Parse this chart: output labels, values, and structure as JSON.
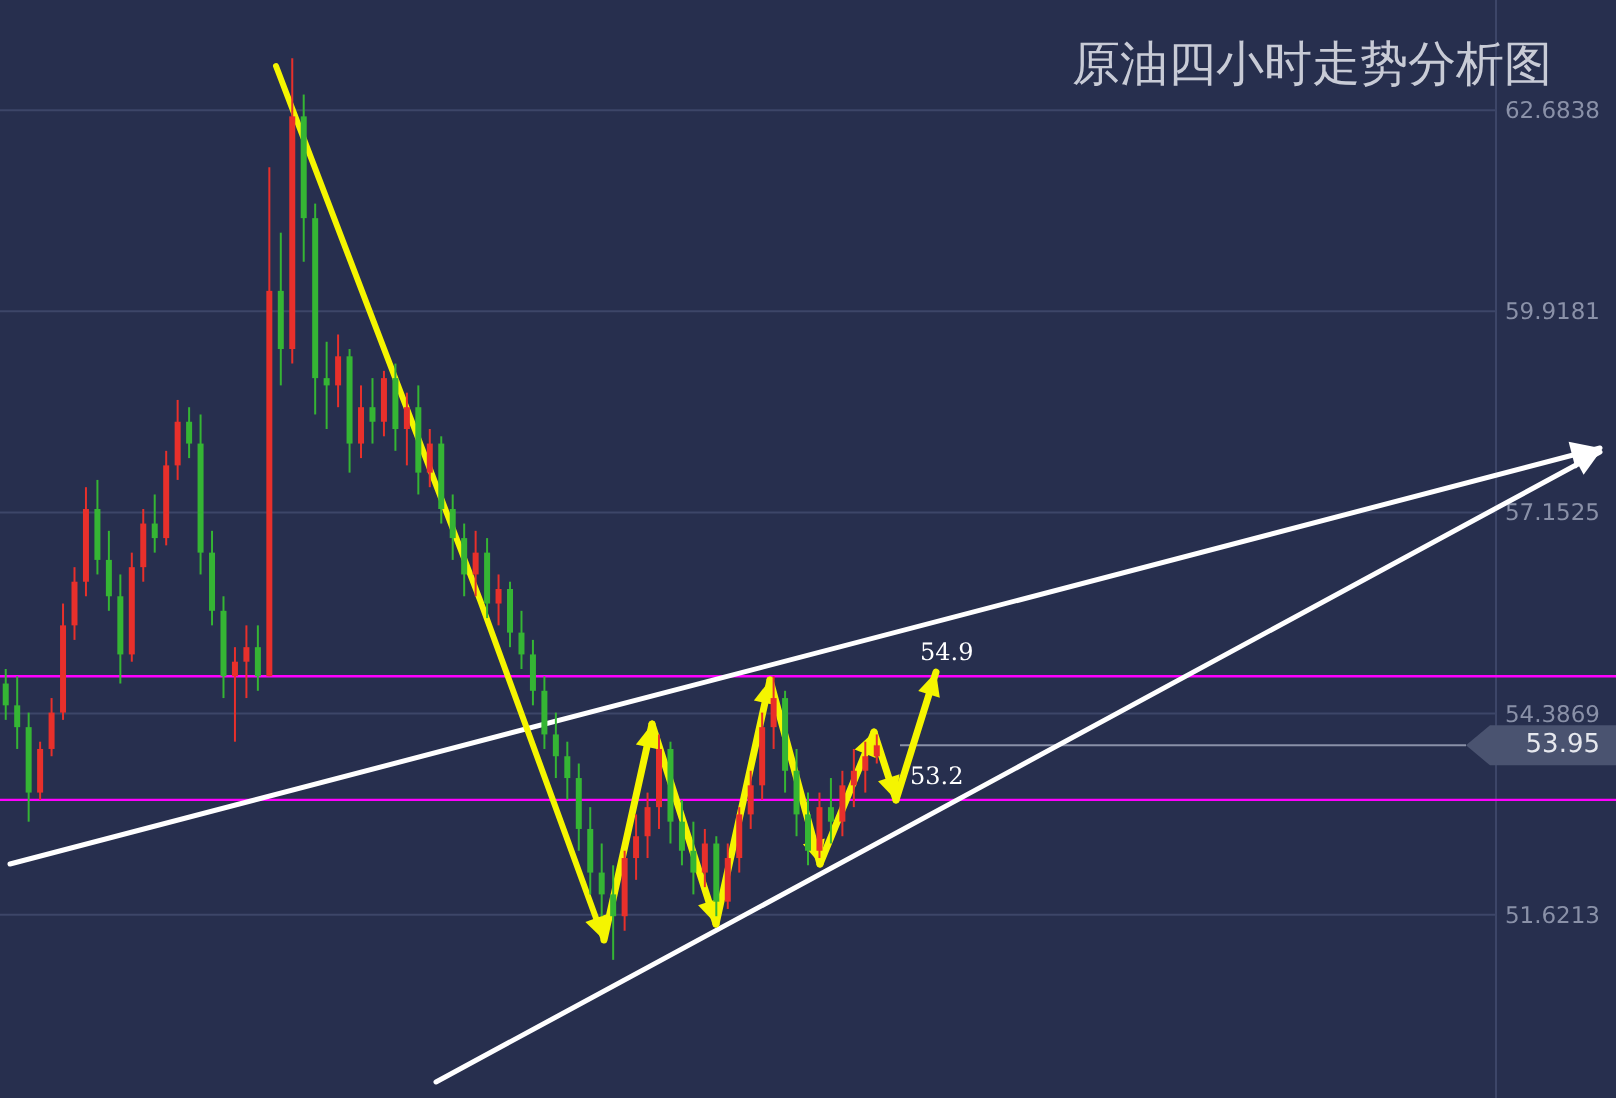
{
  "chart_data": {
    "type": "candlestick",
    "title": "原油四小时走势分析图",
    "categories": [
      null,
      null,
      null,
      null,
      null,
      null,
      null,
      null,
      null,
      null,
      null,
      null,
      null,
      null,
      null,
      null,
      null,
      null,
      null,
      null,
      null,
      null,
      null,
      null,
      null,
      null,
      null,
      null,
      null,
      null,
      null,
      null,
      null,
      null,
      null,
      null,
      null,
      null,
      null,
      null,
      null,
      null,
      null,
      null,
      null,
      null,
      null,
      null,
      null,
      null,
      null,
      null,
      null,
      null,
      null,
      null,
      null,
      null,
      null,
      null,
      null,
      null,
      null,
      null,
      null,
      null,
      null,
      null,
      null,
      null,
      null,
      null,
      null,
      null,
      null,
      null,
      null,
      null,
      null,
      null,
      null,
      null,
      null,
      null,
      null,
      null,
      null,
      null,
      null,
      null,
      null,
      null,
      null,
      null,
      null,
      null,
      null,
      null,
      null,
      null,
      null,
      null,
      null,
      null,
      null,
      null,
      null,
      null,
      null,
      null,
      null,
      null,
      null,
      null,
      null,
      null,
      null,
      null,
      null,
      null,
      null,
      null,
      null,
      null,
      null,
      null,
      null,
      null,
      null,
      null,
      null,
      null,
      null,
      null,
      null,
      null,
      null,
      null,
      null,
      null,
      null
    ],
    "ohlc": [
      [
        54.8,
        55.0,
        54.3,
        54.5
      ],
      [
        54.5,
        54.9,
        53.9,
        54.2
      ],
      [
        54.2,
        54.4,
        52.9,
        53.3
      ],
      [
        53.3,
        54.0,
        53.2,
        53.9
      ],
      [
        53.9,
        54.6,
        53.8,
        54.4
      ],
      [
        54.4,
        55.9,
        54.3,
        55.6
      ],
      [
        55.6,
        56.4,
        55.4,
        56.2
      ],
      [
        56.2,
        57.5,
        56.0,
        57.2
      ],
      [
        57.2,
        57.6,
        56.3,
        56.5
      ],
      [
        56.5,
        56.9,
        55.8,
        56.0
      ],
      [
        56.0,
        56.3,
        54.8,
        55.2
      ],
      [
        55.2,
        56.6,
        55.1,
        56.4
      ],
      [
        56.4,
        57.2,
        56.2,
        57.0
      ],
      [
        57.0,
        57.4,
        56.6,
        56.8
      ],
      [
        56.8,
        58.0,
        56.7,
        57.8
      ],
      [
        57.8,
        58.7,
        57.6,
        58.4
      ],
      [
        58.4,
        58.6,
        57.9,
        58.1
      ],
      [
        58.1,
        58.5,
        56.3,
        56.6
      ],
      [
        56.6,
        56.9,
        55.6,
        55.8
      ],
      [
        55.8,
        56.0,
        54.6,
        54.9
      ],
      [
        54.9,
        55.3,
        54.0,
        55.1
      ],
      [
        55.1,
        55.6,
        54.6,
        55.3
      ],
      [
        55.3,
        55.6,
        54.7,
        54.9
      ],
      [
        54.9,
        61.9,
        54.9,
        60.2
      ],
      [
        60.2,
        61.0,
        58.9,
        59.4
      ],
      [
        59.4,
        63.4,
        59.2,
        62.6
      ],
      [
        62.6,
        62.9,
        60.6,
        61.2
      ],
      [
        61.2,
        61.4,
        58.5,
        59.0
      ],
      [
        59.0,
        59.5,
        58.3,
        58.9
      ],
      [
        58.9,
        59.6,
        58.6,
        59.3
      ],
      [
        59.3,
        59.4,
        57.7,
        58.1
      ],
      [
        58.1,
        58.9,
        57.9,
        58.6
      ],
      [
        58.6,
        59.0,
        58.1,
        58.4
      ],
      [
        58.4,
        59.1,
        58.2,
        59.0
      ],
      [
        59.0,
        59.2,
        58.0,
        58.3
      ],
      [
        58.3,
        58.8,
        57.8,
        58.6
      ],
      [
        58.6,
        58.9,
        57.4,
        57.7
      ],
      [
        57.7,
        58.3,
        57.5,
        58.1
      ],
      [
        58.1,
        58.2,
        57.0,
        57.2
      ],
      [
        57.2,
        57.4,
        56.5,
        56.8
      ],
      [
        56.8,
        57.0,
        56.0,
        56.3
      ],
      [
        56.3,
        56.9,
        56.0,
        56.6
      ],
      [
        56.6,
        56.8,
        55.7,
        55.9
      ],
      [
        55.9,
        56.3,
        55.6,
        56.1
      ],
      [
        56.1,
        56.2,
        55.3,
        55.5
      ],
      [
        55.5,
        55.8,
        55.0,
        55.2
      ],
      [
        55.2,
        55.4,
        54.5,
        54.7
      ],
      [
        54.7,
        54.9,
        53.9,
        54.1
      ],
      [
        54.1,
        54.4,
        53.5,
        53.8
      ],
      [
        53.8,
        54.0,
        53.2,
        53.5
      ],
      [
        53.5,
        53.7,
        52.5,
        52.8
      ],
      [
        52.8,
        53.1,
        51.9,
        52.2
      ],
      [
        52.2,
        52.6,
        51.6,
        51.9
      ],
      [
        51.9,
        52.3,
        51.0,
        51.6
      ],
      [
        51.6,
        52.5,
        51.4,
        52.4
      ],
      [
        52.4,
        53.0,
        52.1,
        52.7
      ],
      [
        52.7,
        53.3,
        52.4,
        53.1
      ],
      [
        53.1,
        54.1,
        52.8,
        53.9
      ],
      [
        53.9,
        54.0,
        52.6,
        52.9
      ],
      [
        52.9,
        53.2,
        52.3,
        52.5
      ],
      [
        52.5,
        52.9,
        51.9,
        52.2
      ],
      [
        52.2,
        52.8,
        52.0,
        52.6
      ],
      [
        52.6,
        52.7,
        51.6,
        51.8
      ],
      [
        51.8,
        52.6,
        51.7,
        52.4
      ],
      [
        52.4,
        53.1,
        52.2,
        53.0
      ],
      [
        53.0,
        53.6,
        52.8,
        53.4
      ],
      [
        53.4,
        54.4,
        53.2,
        54.2
      ],
      [
        54.2,
        54.9,
        53.9,
        54.6
      ],
      [
        54.6,
        54.7,
        53.3,
        53.6
      ],
      [
        53.6,
        53.9,
        52.7,
        53.0
      ],
      [
        53.0,
        53.3,
        52.3,
        52.5
      ],
      [
        52.5,
        53.3,
        52.4,
        53.1
      ],
      [
        53.1,
        53.5,
        52.6,
        52.9
      ],
      [
        52.9,
        53.6,
        52.7,
        53.4
      ],
      [
        53.4,
        53.9,
        53.1,
        53.6
      ],
      [
        53.6,
        54.0,
        53.3,
        53.8
      ],
      [
        53.8,
        54.1,
        53.7,
        53.95
      ],
      null,
      null,
      null,
      null,
      null,
      null,
      null,
      null,
      null,
      null,
      null,
      null,
      null,
      null,
      null,
      null,
      null,
      null,
      null,
      null,
      null,
      null,
      null,
      null,
      null,
      null,
      null,
      null,
      null,
      null,
      null,
      null,
      null,
      null,
      null,
      null,
      null,
      null,
      null,
      null,
      null,
      null,
      null,
      null,
      null,
      null,
      null,
      null,
      null,
      null,
      null,
      null,
      null,
      null,
      null,
      null,
      null,
      null,
      null,
      null,
      null,
      null,
      null,
      null
    ],
    "ylim": [
      49.1,
      64.2
    ],
    "yticks": [
      51.6213,
      54.3869,
      57.1525,
      59.9181,
      62.6838
    ],
    "tick_labels": "y",
    "grid": "y",
    "ref_lines": [
      {
        "axis": "y",
        "value": 54.9,
        "label": "54.9",
        "color": "#ff00ff"
      },
      {
        "axis": "y",
        "value": 53.2,
        "label": "53.2",
        "color": "#ff00ff"
      },
      {
        "axis": "y",
        "value": 53.95,
        "label": "53.95",
        "color": "#8a91a8"
      }
    ]
  }
}
